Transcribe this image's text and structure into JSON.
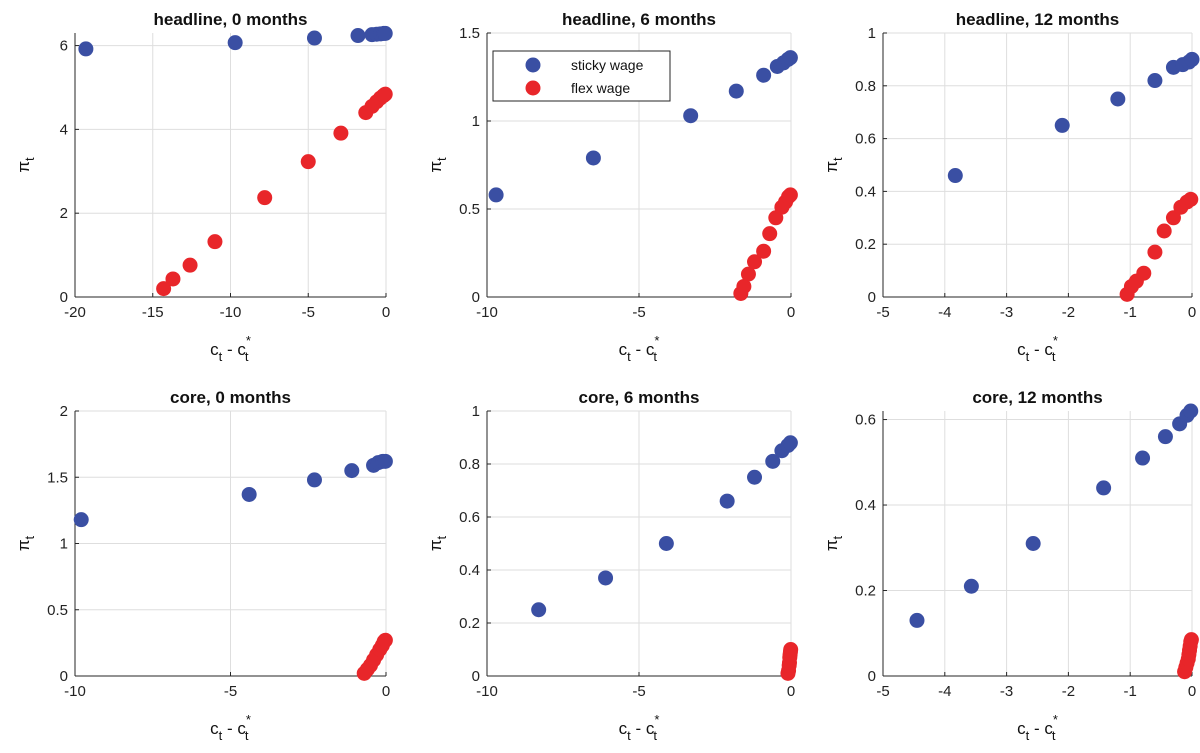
{
  "figure": {
    "series_styles": [
      {
        "key": "sticky",
        "color": "#3a4fa3"
      },
      {
        "key": "flex",
        "color": "#e8262a"
      }
    ],
    "legend": {
      "entries": [
        "sticky wage",
        "flex wage"
      ],
      "panel_index": 1,
      "placement": "top-left"
    }
  },
  "chart_data": [
    {
      "type": "scatter",
      "title": "headline, 0 months",
      "xlabel": "c_t - c_t^*",
      "ylabel": "π_t",
      "xlim": [
        -20,
        0
      ],
      "ylim": [
        0,
        6.3
      ],
      "xticks": [
        -20,
        -15,
        -10,
        -5,
        0
      ],
      "yticks": [
        0,
        2,
        4,
        6
      ],
      "grid": true,
      "series": [
        {
          "name": "sticky wage",
          "color": "#3a4fa3",
          "x": [
            -19.3,
            -9.7,
            -4.6,
            -1.8,
            -0.9,
            -0.6,
            -0.35,
            -0.15,
            -0.05
          ],
          "y": [
            5.92,
            6.07,
            6.18,
            6.24,
            6.26,
            6.27,
            6.28,
            6.29,
            6.29
          ]
        },
        {
          "name": "flex wage",
          "color": "#e8262a",
          "x": [
            -14.3,
            -13.7,
            -12.6,
            -11.0,
            -7.8,
            -5.0,
            -2.9,
            -1.3,
            -0.9,
            -0.6,
            -0.35,
            -0.15,
            -0.05
          ],
          "y": [
            0.2,
            0.43,
            0.76,
            1.32,
            2.37,
            3.23,
            3.91,
            4.4,
            4.55,
            4.66,
            4.75,
            4.81,
            4.84
          ]
        }
      ]
    },
    {
      "type": "scatter",
      "title": "headline, 6 months",
      "xlabel": "c_t - c_t^*",
      "ylabel": "π_t",
      "xlim": [
        -10,
        0
      ],
      "ylim": [
        0,
        1.5
      ],
      "xticks": [
        -10,
        -5,
        0
      ],
      "yticks": [
        0,
        0.5,
        1,
        1.5
      ],
      "grid": true,
      "series": [
        {
          "name": "sticky wage",
          "color": "#3a4fa3",
          "x": [
            -9.7,
            -6.5,
            -3.3,
            -1.8,
            -0.9,
            -0.45,
            -0.25,
            -0.1,
            -0.02
          ],
          "y": [
            0.58,
            0.79,
            1.03,
            1.17,
            1.26,
            1.31,
            1.33,
            1.35,
            1.36
          ]
        },
        {
          "name": "flex wage",
          "color": "#e8262a",
          "x": [
            -1.65,
            -1.55,
            -1.4,
            -1.2,
            -0.9,
            -0.7,
            -0.5,
            -0.3,
            -0.18,
            -0.08,
            -0.02
          ],
          "y": [
            0.02,
            0.06,
            0.13,
            0.2,
            0.26,
            0.36,
            0.45,
            0.51,
            0.54,
            0.57,
            0.58
          ]
        }
      ]
    },
    {
      "type": "scatter",
      "title": "headline, 12 months",
      "xlabel": "c_t - c_t^*",
      "ylabel": "π_t",
      "xlim": [
        -5,
        0
      ],
      "ylim": [
        0,
        1
      ],
      "xticks": [
        -5,
        -4,
        -3,
        -2,
        -1,
        0
      ],
      "yticks": [
        0,
        0.2,
        0.4,
        0.6,
        0.8,
        1
      ],
      "grid": true,
      "series": [
        {
          "name": "sticky wage",
          "color": "#3a4fa3",
          "x": [
            -3.83,
            -2.1,
            -1.2,
            -0.6,
            -0.3,
            -0.15,
            -0.05,
            0
          ],
          "y": [
            0.46,
            0.65,
            0.75,
            0.82,
            0.87,
            0.88,
            0.89,
            0.9
          ]
        },
        {
          "name": "flex wage",
          "color": "#e8262a",
          "x": [
            -1.05,
            -0.98,
            -0.9,
            -0.78,
            -0.6,
            -0.45,
            -0.3,
            -0.18,
            -0.08,
            -0.02
          ],
          "y": [
            0.01,
            0.04,
            0.06,
            0.09,
            0.17,
            0.25,
            0.3,
            0.34,
            0.36,
            0.37
          ]
        }
      ]
    },
    {
      "type": "scatter",
      "title": "core, 0 months",
      "xlabel": "c_t - c_t^*",
      "ylabel": "π_t",
      "xlim": [
        -10,
        0
      ],
      "ylim": [
        0,
        2
      ],
      "xticks": [
        -10,
        -5,
        0
      ],
      "yticks": [
        0,
        0.5,
        1,
        1.5,
        2
      ],
      "grid": true,
      "series": [
        {
          "name": "sticky wage",
          "color": "#3a4fa3",
          "x": [
            -9.8,
            -4.4,
            -2.3,
            -1.1,
            -0.4,
            -0.25,
            -0.1,
            -0.02
          ],
          "y": [
            1.18,
            1.37,
            1.48,
            1.55,
            1.59,
            1.61,
            1.62,
            1.62
          ]
        },
        {
          "name": "flex wage",
          "color": "#e8262a",
          "x": [
            -0.7,
            -0.6,
            -0.5,
            -0.4,
            -0.3,
            -0.2,
            -0.12,
            -0.06,
            -0.02
          ],
          "y": [
            0.02,
            0.05,
            0.08,
            0.12,
            0.16,
            0.2,
            0.23,
            0.26,
            0.27
          ]
        }
      ]
    },
    {
      "type": "scatter",
      "title": "core, 6 months",
      "xlabel": "c_t - c_t^*",
      "ylabel": "π_t",
      "xlim": [
        -10,
        0
      ],
      "ylim": [
        0,
        1
      ],
      "xticks": [
        -10,
        -5,
        0
      ],
      "yticks": [
        0,
        0.2,
        0.4,
        0.6,
        0.8,
        1
      ],
      "grid": true,
      "series": [
        {
          "name": "sticky wage",
          "color": "#3a4fa3",
          "x": [
            -8.3,
            -6.1,
            -4.1,
            -2.1,
            -1.2,
            -0.6,
            -0.3,
            -0.1,
            -0.02
          ],
          "y": [
            0.25,
            0.37,
            0.5,
            0.66,
            0.75,
            0.81,
            0.85,
            0.87,
            0.88
          ]
        },
        {
          "name": "flex wage",
          "color": "#e8262a",
          "x": [
            -0.1,
            -0.08,
            -0.06,
            -0.05,
            -0.04,
            -0.03,
            -0.02,
            -0.01
          ],
          "y": [
            0.01,
            0.02,
            0.04,
            0.05,
            0.07,
            0.08,
            0.09,
            0.1
          ]
        }
      ]
    },
    {
      "type": "scatter",
      "title": "core, 12 months",
      "xlabel": "c_t - c_t^*",
      "ylabel": "π_t",
      "xlim": [
        -5,
        0
      ],
      "ylim": [
        0,
        0.62
      ],
      "xticks": [
        -5,
        -4,
        -3,
        -2,
        -1,
        0
      ],
      "yticks": [
        0,
        0.2,
        0.4,
        0.6
      ],
      "grid": true,
      "series": [
        {
          "name": "sticky wage",
          "color": "#3a4fa3",
          "x": [
            -4.45,
            -3.57,
            -2.57,
            -1.43,
            -0.8,
            -0.43,
            -0.2,
            -0.08,
            -0.02
          ],
          "y": [
            0.13,
            0.21,
            0.31,
            0.44,
            0.51,
            0.56,
            0.59,
            0.61,
            0.62
          ]
        },
        {
          "name": "flex wage",
          "color": "#e8262a",
          "x": [
            -0.12,
            -0.1,
            -0.08,
            -0.06,
            -0.05,
            -0.04,
            -0.03,
            -0.02,
            -0.01
          ],
          "y": [
            0.01,
            0.02,
            0.03,
            0.04,
            0.05,
            0.06,
            0.07,
            0.08,
            0.085
          ]
        }
      ]
    }
  ]
}
